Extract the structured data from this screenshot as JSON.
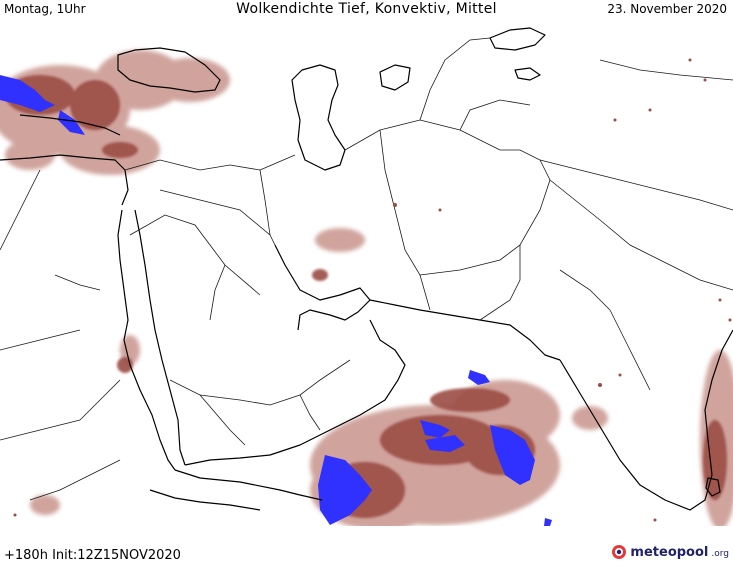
{
  "header": {
    "left": "Montag, 1Uhr",
    "title": "Wolkendichte   Tief, Konvektiv, Mittel",
    "right": "23. November 2020"
  },
  "footer": {
    "run": "+180h  Init:12Z15NOV2020"
  },
  "logo": {
    "name": "meteopool",
    "suffix": ".org"
  },
  "colors": {
    "cloud_low": "#c8948c",
    "cloud_mid": "#9b4d45",
    "cloud_high": "#7a2b22",
    "cloud_max": "#3030ff",
    "coastline": "#000000",
    "border": "#1a1a1a"
  }
}
